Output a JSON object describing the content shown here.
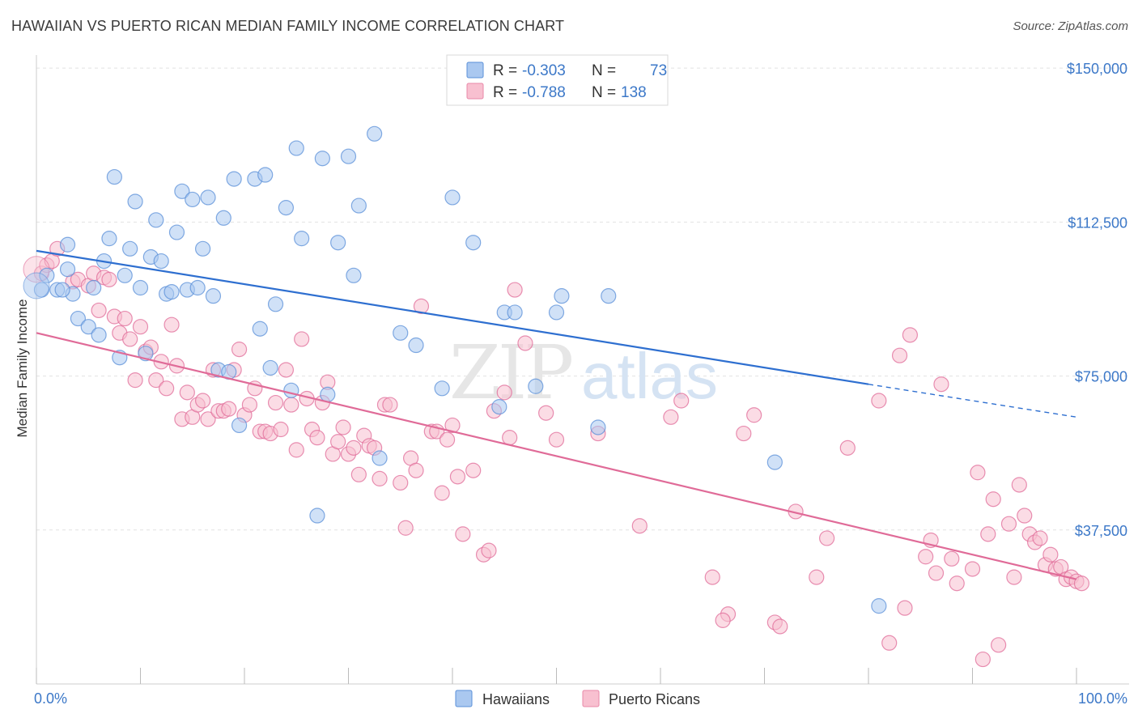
{
  "title": "HAWAIIAN VS PUERTO RICAN MEDIAN FAMILY INCOME CORRELATION CHART",
  "source": "Source: ZipAtlas.com",
  "watermark": {
    "zip": "ZIP",
    "atlas": "atlas"
  },
  "legend": {
    "r_label": "R =",
    "n_label": "N =",
    "series": [
      {
        "r": "-0.303",
        "n": "73",
        "fill": "#aac8f0",
        "stroke": "#5a8fd8"
      },
      {
        "r": "-0.788",
        "n": "138",
        "fill": "#f8c0d0",
        "stroke": "#e888a8"
      }
    ]
  },
  "chart_data": {
    "type": "scatter",
    "title": "HAWAIIAN VS PUERTO RICAN MEDIAN FAMILY INCOME CORRELATION CHART",
    "xlabel": "",
    "ylabel": "Median Family Income",
    "xlim": [
      0,
      100
    ],
    "ylim": [
      0,
      152000
    ],
    "x_tick_labels": [
      "0.0%",
      "100.0%"
    ],
    "y_ticks": [
      37500,
      75000,
      112500,
      150000
    ],
    "y_tick_labels": [
      "$37,500",
      "$75,000",
      "$112,500",
      "$150,000"
    ],
    "grid": "horizontal dashed",
    "legend_position": "top-center",
    "series": [
      {
        "name": "Hawaiians",
        "color": "#5a8fd8",
        "fill": "#aac8f0",
        "trend": {
          "x0": 0,
          "y0": 105500,
          "x1": 80,
          "y1": 73000,
          "dashed_to": 100,
          "dashed_y": 65000
        },
        "points": [
          [
            0.5,
            96
          ],
          [
            1,
            99.5
          ],
          [
            2,
            96
          ],
          [
            3,
            101
          ],
          [
            3.5,
            95
          ],
          [
            2.5,
            96
          ],
          [
            3,
            107
          ],
          [
            4,
            89
          ],
          [
            5.5,
            96.5
          ],
          [
            5,
            87
          ],
          [
            6,
            85
          ],
          [
            6.5,
            103
          ],
          [
            7,
            108.5
          ],
          [
            7.5,
            123.5
          ],
          [
            8,
            79.5
          ],
          [
            8.5,
            99.5
          ],
          [
            9,
            106
          ],
          [
            9.5,
            117.5
          ],
          [
            10,
            96.5
          ],
          [
            10.5,
            80.5
          ],
          [
            11,
            104
          ],
          [
            11.5,
            113
          ],
          [
            12,
            103
          ],
          [
            12.5,
            95
          ],
          [
            13,
            95.5
          ],
          [
            13.5,
            110
          ],
          [
            14,
            120
          ],
          [
            14.5,
            96
          ],
          [
            15,
            118
          ],
          [
            15.5,
            96.5
          ],
          [
            16,
            106
          ],
          [
            16.5,
            118.5
          ],
          [
            17,
            94.5
          ],
          [
            17.5,
            76.5
          ],
          [
            18,
            113.5
          ],
          [
            18.5,
            76
          ],
          [
            19,
            123
          ],
          [
            19.5,
            63
          ],
          [
            21,
            123
          ],
          [
            21.5,
            86.5
          ],
          [
            22,
            124
          ],
          [
            22.5,
            77
          ],
          [
            23,
            92.5
          ],
          [
            24,
            116
          ],
          [
            24.5,
            71.5
          ],
          [
            25,
            130.5
          ],
          [
            25.5,
            108.5
          ],
          [
            27,
            41
          ],
          [
            27.5,
            128
          ],
          [
            28,
            70.5
          ],
          [
            29,
            107.5
          ],
          [
            30,
            128.5
          ],
          [
            30.5,
            99.5
          ],
          [
            31,
            116.5
          ],
          [
            32.5,
            134
          ],
          [
            33,
            55
          ],
          [
            35,
            85.5
          ],
          [
            36.5,
            82.5
          ],
          [
            39,
            72
          ],
          [
            40,
            118.5
          ],
          [
            42,
            107.5
          ],
          [
            44.5,
            67.5
          ],
          [
            45,
            90.5
          ],
          [
            46,
            90.5
          ],
          [
            48,
            72.5
          ],
          [
            50,
            90.5
          ],
          [
            50.5,
            94.5
          ],
          [
            54,
            62.5
          ],
          [
            55,
            94.5
          ],
          [
            71,
            54
          ],
          [
            81,
            19
          ]
        ]
      },
      {
        "name": "Puerto Ricans",
        "color": "#e06b98",
        "fill": "#f8c0d0",
        "trend": {
          "x0": 0,
          "y0": 85500,
          "x1": 100,
          "y1": 25500
        },
        "points": [
          [
            0.5,
            100
          ],
          [
            1,
            102
          ],
          [
            1.5,
            103
          ],
          [
            2,
            106
          ],
          [
            3.5,
            98
          ],
          [
            4,
            98.5
          ],
          [
            5,
            97
          ],
          [
            5.5,
            100
          ],
          [
            6,
            91
          ],
          [
            6.5,
            99
          ],
          [
            7,
            98.5
          ],
          [
            7.5,
            89.5
          ],
          [
            8,
            85.5
          ],
          [
            8.5,
            89
          ],
          [
            9,
            84
          ],
          [
            9.5,
            74
          ],
          [
            10,
            87
          ],
          [
            10.5,
            81
          ],
          [
            11,
            82
          ],
          [
            11.5,
            74
          ],
          [
            12,
            78.5
          ],
          [
            12.5,
            72
          ],
          [
            13,
            87.5
          ],
          [
            13.5,
            77.5
          ],
          [
            14,
            64.5
          ],
          [
            14.5,
            71
          ],
          [
            15,
            65
          ],
          [
            15.5,
            68
          ],
          [
            16,
            69
          ],
          [
            16.5,
            64.5
          ],
          [
            17,
            76.5
          ],
          [
            17.5,
            66.5
          ],
          [
            18,
            66.5
          ],
          [
            18.5,
            67
          ],
          [
            19,
            76.5
          ],
          [
            19.5,
            81.5
          ],
          [
            20,
            65.5
          ],
          [
            20.5,
            68
          ],
          [
            21,
            72
          ],
          [
            21.5,
            61.5
          ],
          [
            22,
            61.5
          ],
          [
            22.5,
            61
          ],
          [
            23,
            68.5
          ],
          [
            23.5,
            62
          ],
          [
            24,
            76.5
          ],
          [
            24.5,
            68
          ],
          [
            25,
            57
          ],
          [
            25.5,
            84
          ],
          [
            26,
            69.5
          ],
          [
            26.5,
            62
          ],
          [
            27,
            60
          ],
          [
            27.5,
            68.5
          ],
          [
            28,
            73.5
          ],
          [
            28.5,
            56
          ],
          [
            29,
            59
          ],
          [
            29.5,
            62.5
          ],
          [
            30,
            56
          ],
          [
            30.5,
            57.5
          ],
          [
            31,
            51
          ],
          [
            31.5,
            60.5
          ],
          [
            32,
            58
          ],
          [
            32.5,
            57.5
          ],
          [
            33,
            50
          ],
          [
            33.5,
            68
          ],
          [
            34,
            68
          ],
          [
            35,
            49
          ],
          [
            35.5,
            38
          ],
          [
            36,
            55
          ],
          [
            36.5,
            52
          ],
          [
            37,
            92
          ],
          [
            38,
            61.5
          ],
          [
            38.5,
            61.5
          ],
          [
            39,
            46.5
          ],
          [
            39.5,
            59.5
          ],
          [
            40,
            63
          ],
          [
            40.5,
            50.5
          ],
          [
            41,
            36.5
          ],
          [
            42,
            52
          ],
          [
            43,
            31.5
          ],
          [
            43.5,
            32.5
          ],
          [
            44,
            66.5
          ],
          [
            45,
            71
          ],
          [
            45.5,
            60
          ],
          [
            46,
            96
          ],
          [
            47,
            83
          ],
          [
            49,
            66
          ],
          [
            50,
            59.5
          ],
          [
            54,
            61
          ],
          [
            58,
            38.5
          ],
          [
            61,
            65
          ],
          [
            62,
            69
          ],
          [
            65,
            26
          ],
          [
            66.5,
            17
          ],
          [
            66,
            15.5
          ],
          [
            68,
            61
          ],
          [
            69,
            65.5
          ],
          [
            71,
            15
          ],
          [
            71.5,
            14
          ],
          [
            73,
            42
          ],
          [
            75,
            26
          ],
          [
            76,
            35.5
          ],
          [
            78,
            57.5
          ],
          [
            81,
            69
          ],
          [
            82,
            10
          ],
          [
            83,
            80
          ],
          [
            83.5,
            18.5
          ],
          [
            84,
            85
          ],
          [
            85.5,
            31
          ],
          [
            86,
            35
          ],
          [
            87,
            73
          ],
          [
            86.5,
            27
          ],
          [
            88,
            30.5
          ],
          [
            88.5,
            24.5
          ],
          [
            90,
            28
          ],
          [
            90.5,
            51.5
          ],
          [
            91,
            6
          ],
          [
            91.5,
            36.5
          ],
          [
            92,
            45
          ],
          [
            92.5,
            9.5
          ],
          [
            93.5,
            39
          ],
          [
            94,
            26
          ],
          [
            94.5,
            48.5
          ],
          [
            95,
            41
          ],
          [
            95.5,
            36.5
          ],
          [
            96,
            34.5
          ],
          [
            96.5,
            35.5
          ],
          [
            97,
            29
          ],
          [
            97.5,
            31.5
          ],
          [
            98,
            28
          ],
          [
            98.5,
            28.5
          ],
          [
            99,
            25.5
          ],
          [
            99.5,
            26
          ],
          [
            100,
            25
          ],
          [
            100.5,
            24.5
          ]
        ]
      }
    ]
  },
  "bottom_legend": [
    "Hawaiians",
    "Puerto Ricans"
  ]
}
